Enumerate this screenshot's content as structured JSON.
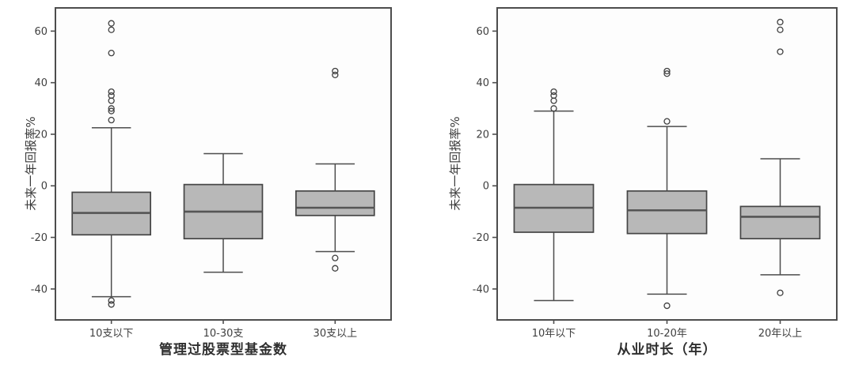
{
  "colors": {
    "page_background": "#ffffff",
    "panel_background": "#fdfdfd",
    "frame_stroke": "#4d4d4d",
    "box_fill": "#b8b8b8",
    "box_stroke": "#454545",
    "median_stroke": "#555555",
    "whisker_stroke": "#4d4d4d",
    "outlier_stroke": "#3f3f3f",
    "tick_text": "#3f3f3f"
  },
  "chart_data": [
    {
      "type": "boxplot",
      "title": "",
      "xlabel": "管理过股票型基金数",
      "ylabel": "未来一年回报率%",
      "ylim": [
        -52,
        69
      ],
      "yticks": [
        60,
        40,
        20,
        0,
        -20,
        -40
      ],
      "grid": false,
      "categories": [
        "10支以下",
        "10-30支",
        "30支以上"
      ],
      "boxes": [
        {
          "label": "10支以下",
          "whisker_low": -43,
          "q1": -19,
          "median": -10.5,
          "q3": -2.5,
          "whisker_high": 22.5,
          "outliers": [
            63,
            60.5,
            51.5,
            36.5,
            35,
            33,
            30,
            29,
            25.5,
            -44.5,
            -46
          ]
        },
        {
          "label": "10-30支",
          "whisker_low": -33.5,
          "q1": -20.5,
          "median": -10,
          "q3": 0.5,
          "whisker_high": 12.5,
          "outliers": []
        },
        {
          "label": "30支以上",
          "whisker_low": -25.5,
          "q1": -11.5,
          "median": -8.5,
          "q3": -2,
          "whisker_high": 8.5,
          "outliers": [
            44.5,
            43,
            -28,
            -32
          ]
        }
      ]
    },
    {
      "type": "boxplot",
      "title": "",
      "xlabel": "从业时长（年）",
      "ylabel": "未来一年回报率%",
      "ylim": [
        -52,
        69
      ],
      "yticks": [
        60,
        40,
        20,
        0,
        -20,
        -40
      ],
      "grid": false,
      "categories": [
        "10年以下",
        "10-20年",
        "20年以上"
      ],
      "boxes": [
        {
          "label": "10年以下",
          "whisker_low": -44.5,
          "q1": -18,
          "median": -8.5,
          "q3": 0.5,
          "whisker_high": 29,
          "outliers": [
            36.5,
            35,
            33,
            30
          ]
        },
        {
          "label": "10-20年",
          "whisker_low": -42,
          "q1": -18.5,
          "median": -9.5,
          "q3": -2,
          "whisker_high": 23,
          "outliers": [
            44.5,
            43.5,
            25,
            -46.5
          ]
        },
        {
          "label": "20年以上",
          "whisker_low": -34.5,
          "q1": -20.5,
          "median": -12,
          "q3": -8,
          "whisker_high": 10.5,
          "outliers": [
            63.5,
            60.5,
            52,
            -41.5
          ]
        }
      ]
    }
  ]
}
